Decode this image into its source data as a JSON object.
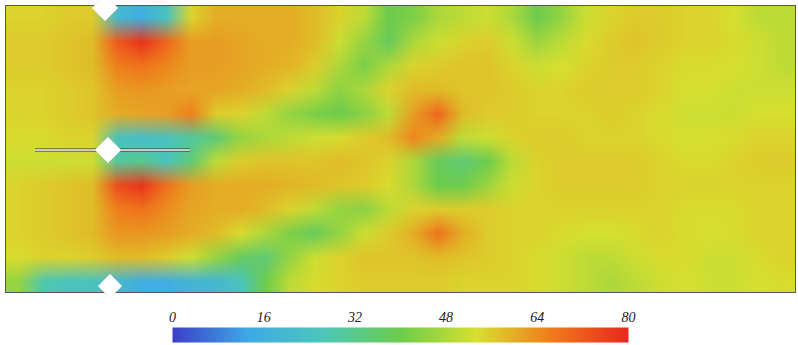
{
  "chart_data": {
    "type": "heatmap",
    "tick_labels": false,
    "cells": [
      [
        55,
        55,
        56,
        56,
        20,
        15,
        25,
        55,
        60,
        60,
        60,
        60,
        58,
        55,
        50,
        40,
        42,
        48,
        50,
        52,
        48,
        40,
        45,
        52,
        55,
        56,
        56,
        55,
        55,
        53,
        50,
        50
      ],
      [
        56,
        56,
        57,
        58,
        72,
        78,
        70,
        62,
        62,
        61,
        60,
        60,
        58,
        52,
        45,
        38,
        48,
        52,
        55,
        56,
        52,
        46,
        50,
        54,
        56,
        57,
        56,
        55,
        55,
        54,
        52,
        50
      ],
      [
        56,
        56,
        57,
        58,
        66,
        68,
        65,
        62,
        62,
        61,
        60,
        59,
        56,
        48,
        42,
        48,
        55,
        56,
        57,
        57,
        55,
        52,
        53,
        55,
        56,
        56,
        55,
        54,
        54,
        53,
        52,
        50
      ],
      [
        55,
        55,
        56,
        57,
        62,
        63,
        62,
        61,
        61,
        60,
        58,
        55,
        50,
        44,
        48,
        55,
        58,
        58,
        57,
        57,
        56,
        55,
        55,
        56,
        56,
        56,
        55,
        53,
        53,
        52,
        52,
        52
      ],
      [
        55,
        55,
        56,
        57,
        60,
        61,
        62,
        66,
        56,
        55,
        50,
        45,
        42,
        40,
        44,
        50,
        62,
        70,
        58,
        56,
        56,
        55,
        55,
        55,
        56,
        55,
        54,
        52,
        52,
        52,
        53,
        53
      ],
      [
        54,
        54,
        55,
        55,
        25,
        22,
        25,
        30,
        35,
        45,
        48,
        50,
        52,
        54,
        56,
        58,
        65,
        60,
        50,
        52,
        55,
        56,
        56,
        55,
        55,
        55,
        54,
        53,
        53,
        54,
        55,
        55
      ],
      [
        52,
        52,
        52,
        52,
        30,
        32,
        25,
        35,
        50,
        56,
        57,
        57,
        57,
        58,
        57,
        55,
        48,
        38,
        35,
        40,
        50,
        55,
        56,
        56,
        56,
        56,
        55,
        54,
        54,
        55,
        56,
        56
      ],
      [
        55,
        56,
        57,
        58,
        74,
        78,
        68,
        62,
        60,
        60,
        60,
        59,
        58,
        57,
        56,
        54,
        48,
        40,
        40,
        46,
        52,
        55,
        56,
        56,
        56,
        56,
        55,
        55,
        55,
        55,
        55,
        55
      ],
      [
        55,
        56,
        57,
        58,
        66,
        68,
        64,
        61,
        60,
        60,
        58,
        55,
        50,
        45,
        44,
        50,
        55,
        56,
        56,
        56,
        55,
        55,
        55,
        55,
        55,
        55,
        55,
        54,
        54,
        54,
        55,
        55
      ],
      [
        55,
        56,
        57,
        58,
        63,
        63,
        62,
        60,
        58,
        54,
        48,
        42,
        38,
        45,
        52,
        56,
        60,
        68,
        60,
        56,
        55,
        55,
        54,
        53,
        53,
        54,
        55,
        54,
        53,
        54,
        55,
        55
      ],
      [
        54,
        55,
        55,
        56,
        58,
        58,
        56,
        52,
        45,
        38,
        35,
        45,
        52,
        55,
        57,
        57,
        57,
        58,
        57,
        56,
        55,
        54,
        52,
        50,
        50,
        52,
        54,
        54,
        52,
        52,
        54,
        55
      ],
      [
        45,
        28,
        25,
        25,
        20,
        15,
        15,
        18,
        20,
        25,
        40,
        50,
        54,
        55,
        56,
        56,
        56,
        56,
        55,
        55,
        55,
        54,
        52,
        50,
        48,
        50,
        52,
        53,
        52,
        52,
        53,
        54
      ]
    ],
    "color_range": [
      0,
      80
    ],
    "color_ticks": [
      0,
      16,
      32,
      48,
      64,
      80
    ],
    "colors": [
      "#3a3fc8",
      "#3fa9e6",
      "#4cc7b8",
      "#6ccc4c",
      "#d8e030",
      "#f07a1c",
      "#e8281c"
    ]
  }
}
